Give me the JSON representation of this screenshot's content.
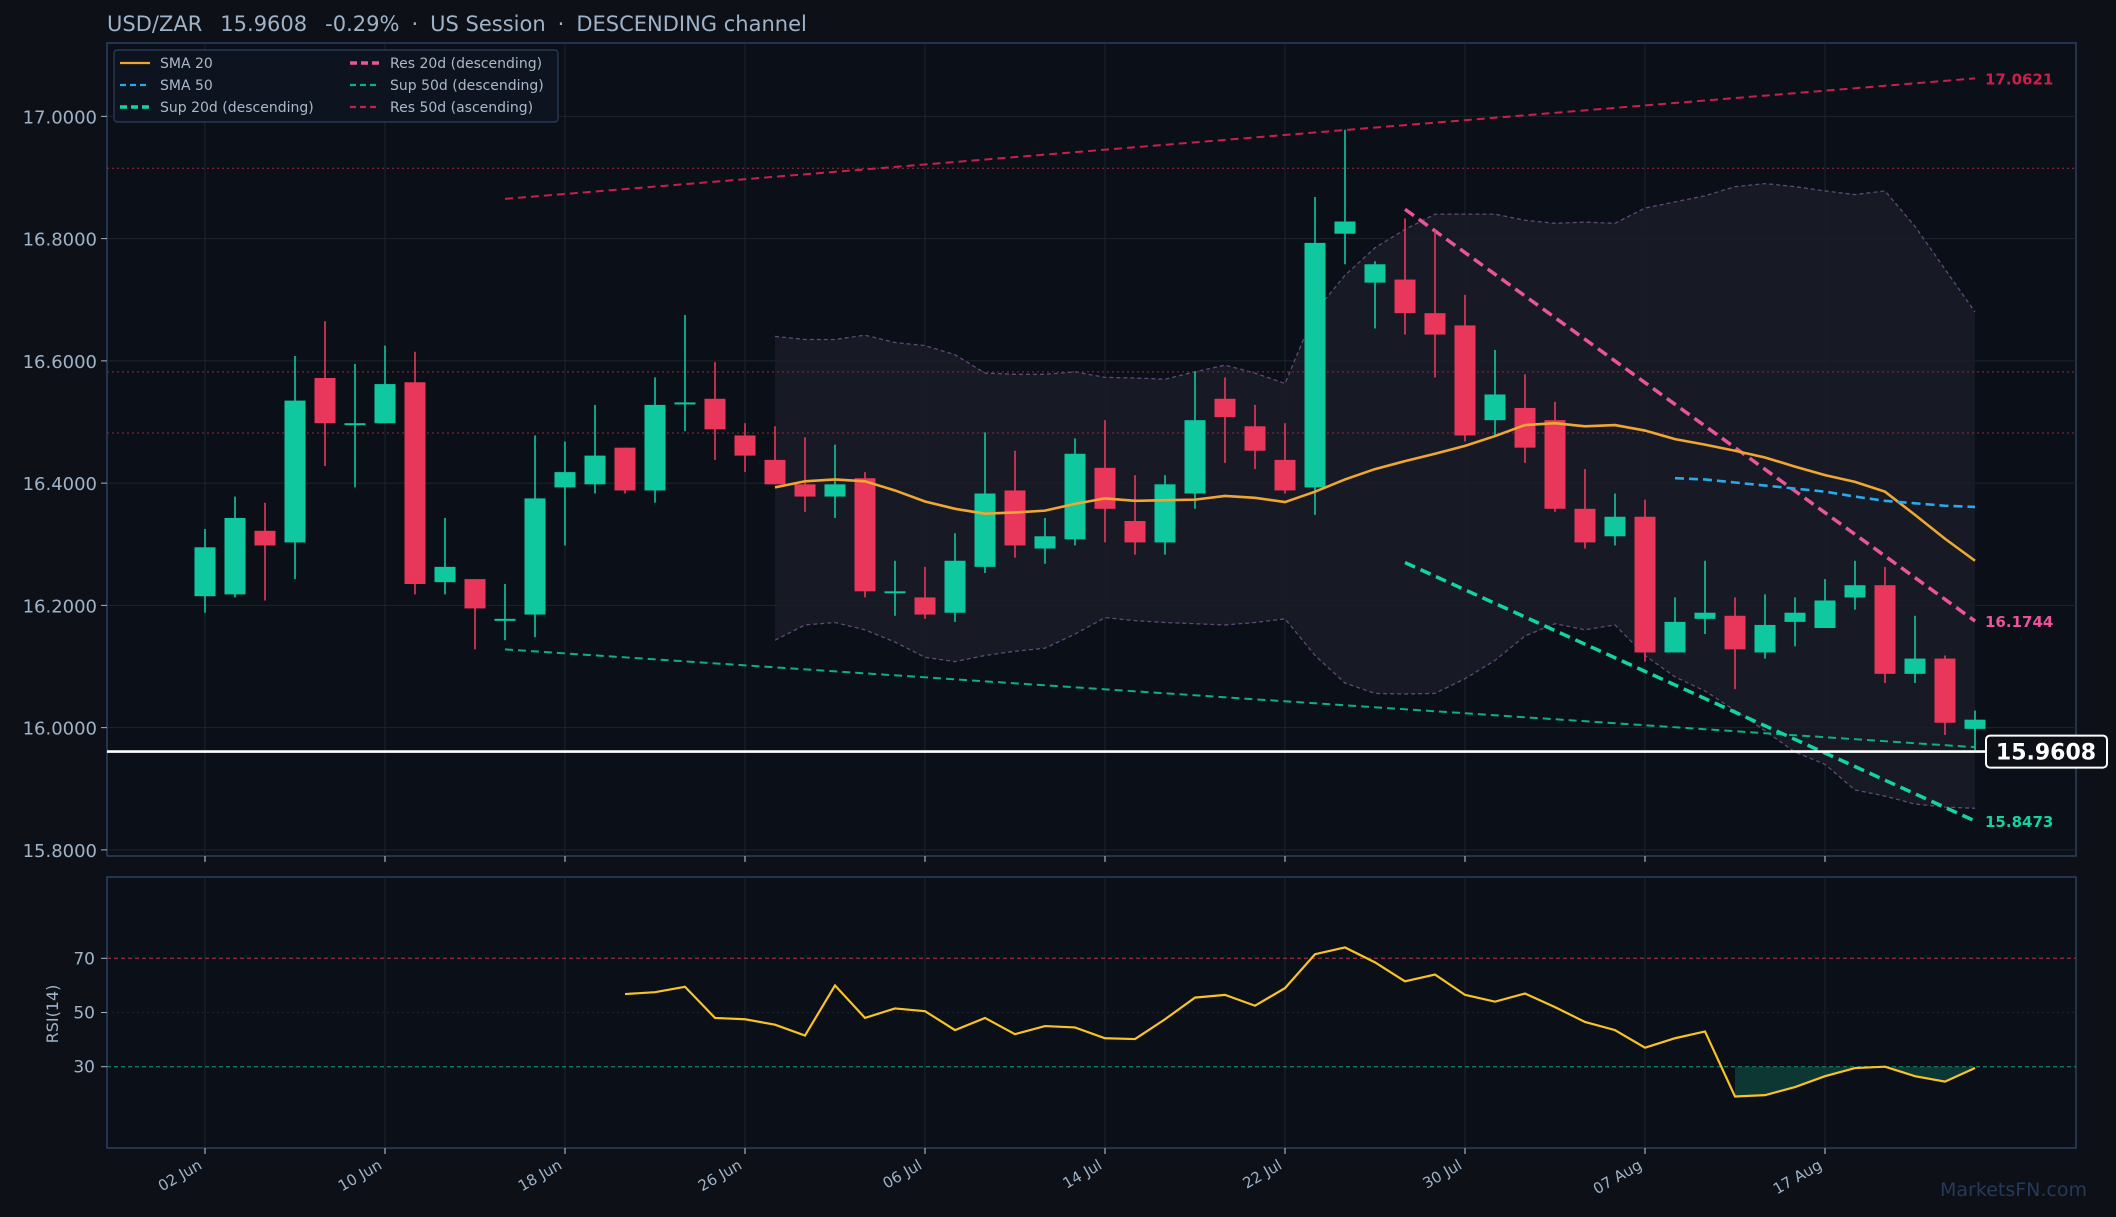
{
  "header": {
    "symbol": "USD/ZAR",
    "price": "15.9608",
    "change": "-0.29%",
    "session": "US Session",
    "pattern": "DESCENDING channel",
    "sep": "·"
  },
  "watermark": "MarketsFN.com",
  "colors": {
    "background": "#0d1117",
    "panel": "#0b0f17",
    "frame": "#2b4060",
    "grid": "#1d2430",
    "text": "#9fb3c8",
    "up": "#0fc8a0",
    "down": "#e8375a",
    "sma20": "#f0a732",
    "sma50": "#2ba9e8",
    "support": "#13d4a0",
    "resistance": "#e8559a",
    "res50": "#c8204a",
    "rsi": "#f7c325",
    "bollinger": "#5e4a78",
    "last_price": "#ffffff"
  },
  "legend": [
    {
      "label": "SMA 20",
      "style": "solid",
      "color": "#f0a732"
    },
    {
      "label": "SMA 50",
      "style": "dashed",
      "color": "#2ba9e8"
    },
    {
      "label": "Sup 20d (descending)",
      "style": "dashed-bold",
      "color": "#13d4a0"
    },
    {
      "label": "Res 20d (descending)",
      "style": "dashed-bold",
      "color": "#e8559a"
    },
    {
      "label": "Sup 50d (descending)",
      "style": "dashed",
      "color": "#0fb07e"
    },
    {
      "label": "Res 50d (ascending)",
      "style": "dashed",
      "color": "#c8204a"
    }
  ],
  "chart_data": {
    "type": "candlestick",
    "title": "USD/ZAR 15.9608 -0.29% · US Session · DESCENDING channel",
    "ylim": [
      15.79,
      17.12
    ],
    "yticks": [
      "15.8000",
      "16.0000",
      "16.2000",
      "16.4000",
      "16.6000",
      "16.8000",
      "17.0000"
    ],
    "x_tick_labels": [
      {
        "i": 0,
        "label": "02 Jun"
      },
      {
        "i": 6,
        "label": "10 Jun"
      },
      {
        "i": 12,
        "label": "18 Jun"
      },
      {
        "i": 18,
        "label": "26 Jun"
      },
      {
        "i": 24,
        "label": "06 Jul"
      },
      {
        "i": 30,
        "label": "14 Jul"
      },
      {
        "i": 36,
        "label": "22 Jul"
      },
      {
        "i": 42,
        "label": "30 Jul"
      },
      {
        "i": 48,
        "label": "07 Aug"
      },
      {
        "i": 54,
        "label": "17 Aug"
      }
    ],
    "candles": [
      {
        "o": 16.215,
        "h": 16.325,
        "l": 16.188,
        "c": 16.295
      },
      {
        "o": 16.218,
        "h": 16.378,
        "l": 16.213,
        "c": 16.343
      },
      {
        "o": 16.322,
        "h": 16.368,
        "l": 16.208,
        "c": 16.298
      },
      {
        "o": 16.303,
        "h": 16.608,
        "l": 16.243,
        "c": 16.535
      },
      {
        "o": 16.572,
        "h": 16.665,
        "l": 16.428,
        "c": 16.498
      },
      {
        "o": 16.496,
        "h": 16.595,
        "l": 16.393,
        "c": 16.498
      },
      {
        "o": 16.498,
        "h": 16.625,
        "l": 16.498,
        "c": 16.562
      },
      {
        "o": 16.565,
        "h": 16.615,
        "l": 16.218,
        "c": 16.235
      },
      {
        "o": 16.238,
        "h": 16.343,
        "l": 16.218,
        "c": 16.263
      },
      {
        "o": 16.243,
        "h": 16.243,
        "l": 16.128,
        "c": 16.195
      },
      {
        "o": 16.178,
        "h": 16.235,
        "l": 16.143,
        "c": 16.178
      },
      {
        "o": 16.185,
        "h": 16.478,
        "l": 16.148,
        "c": 16.375
      },
      {
        "o": 16.393,
        "h": 16.468,
        "l": 16.298,
        "c": 16.418
      },
      {
        "o": 16.398,
        "h": 16.528,
        "l": 16.383,
        "c": 16.445
      },
      {
        "o": 16.458,
        "h": 16.458,
        "l": 16.383,
        "c": 16.388
      },
      {
        "o": 16.388,
        "h": 16.573,
        "l": 16.368,
        "c": 16.528
      },
      {
        "o": 16.532,
        "h": 16.675,
        "l": 16.485,
        "c": 16.532
      },
      {
        "o": 16.538,
        "h": 16.598,
        "l": 16.438,
        "c": 16.488
      },
      {
        "o": 16.478,
        "h": 16.498,
        "l": 16.418,
        "c": 16.445
      },
      {
        "o": 16.438,
        "h": 16.493,
        "l": 16.398,
        "c": 16.398
      },
      {
        "o": 16.398,
        "h": 16.475,
        "l": 16.353,
        "c": 16.378
      },
      {
        "o": 16.378,
        "h": 16.463,
        "l": 16.343,
        "c": 16.398
      },
      {
        "o": 16.408,
        "h": 16.418,
        "l": 16.213,
        "c": 16.223
      },
      {
        "o": 16.223,
        "h": 16.273,
        "l": 16.183,
        "c": 16.223
      },
      {
        "o": 16.213,
        "h": 16.263,
        "l": 16.178,
        "c": 16.185
      },
      {
        "o": 16.188,
        "h": 16.318,
        "l": 16.173,
        "c": 16.273
      },
      {
        "o": 16.263,
        "h": 16.483,
        "l": 16.253,
        "c": 16.383
      },
      {
        "o": 16.388,
        "h": 16.453,
        "l": 16.278,
        "c": 16.298
      },
      {
        "o": 16.293,
        "h": 16.343,
        "l": 16.268,
        "c": 16.313
      },
      {
        "o": 16.308,
        "h": 16.473,
        "l": 16.298,
        "c": 16.448
      },
      {
        "o": 16.425,
        "h": 16.503,
        "l": 16.303,
        "c": 16.358
      },
      {
        "o": 16.338,
        "h": 16.413,
        "l": 16.283,
        "c": 16.303
      },
      {
        "o": 16.303,
        "h": 16.413,
        "l": 16.283,
        "c": 16.398
      },
      {
        "o": 16.383,
        "h": 16.583,
        "l": 16.358,
        "c": 16.503
      },
      {
        "o": 16.538,
        "h": 16.573,
        "l": 16.433,
        "c": 16.508
      },
      {
        "o": 16.493,
        "h": 16.528,
        "l": 16.423,
        "c": 16.453
      },
      {
        "o": 16.438,
        "h": 16.498,
        "l": 16.383,
        "c": 16.388
      },
      {
        "o": 16.393,
        "h": 16.868,
        "l": 16.348,
        "c": 16.793
      },
      {
        "o": 16.808,
        "h": 16.978,
        "l": 16.758,
        "c": 16.828
      },
      {
        "o": 16.728,
        "h": 16.763,
        "l": 16.653,
        "c": 16.758
      },
      {
        "o": 16.733,
        "h": 16.833,
        "l": 16.643,
        "c": 16.678
      },
      {
        "o": 16.678,
        "h": 16.813,
        "l": 16.573,
        "c": 16.643
      },
      {
        "o": 16.658,
        "h": 16.708,
        "l": 16.468,
        "c": 16.478
      },
      {
        "o": 16.503,
        "h": 16.618,
        "l": 16.478,
        "c": 16.545
      },
      {
        "o": 16.523,
        "h": 16.578,
        "l": 16.433,
        "c": 16.458
      },
      {
        "o": 16.503,
        "h": 16.533,
        "l": 16.353,
        "c": 16.358
      },
      {
        "o": 16.358,
        "h": 16.423,
        "l": 16.293,
        "c": 16.303
      },
      {
        "o": 16.313,
        "h": 16.383,
        "l": 16.298,
        "c": 16.345
      },
      {
        "o": 16.345,
        "h": 16.373,
        "l": 16.108,
        "c": 16.123
      },
      {
        "o": 16.123,
        "h": 16.213,
        "l": 16.123,
        "c": 16.173
      },
      {
        "o": 16.178,
        "h": 16.273,
        "l": 16.153,
        "c": 16.188
      },
      {
        "o": 16.183,
        "h": 16.213,
        "l": 16.063,
        "c": 16.128
      },
      {
        "o": 16.123,
        "h": 16.218,
        "l": 16.113,
        "c": 16.168
      },
      {
        "o": 16.173,
        "h": 16.213,
        "l": 16.133,
        "c": 16.188
      },
      {
        "o": 16.163,
        "h": 16.243,
        "l": 16.163,
        "c": 16.208
      },
      {
        "o": 16.213,
        "h": 16.273,
        "l": 16.193,
        "c": 16.233
      },
      {
        "o": 16.233,
        "h": 16.263,
        "l": 16.073,
        "c": 16.088
      },
      {
        "o": 16.088,
        "h": 16.183,
        "l": 16.073,
        "c": 16.113
      },
      {
        "o": 16.113,
        "h": 16.118,
        "l": 15.988,
        "c": 16.008
      },
      {
        "o": 15.998,
        "h": 16.028,
        "l": 15.963,
        "c": 16.013
      }
    ],
    "sma20": {
      "start": 19,
      "values": [
        16.393,
        16.403,
        16.406,
        16.403,
        16.388,
        16.37,
        16.358,
        16.35,
        16.352,
        16.355,
        16.366,
        16.375,
        16.371,
        16.372,
        16.373,
        16.379,
        16.376,
        16.369,
        16.386,
        16.406,
        16.423,
        16.436,
        16.448,
        16.461,
        16.477,
        16.495,
        16.498,
        16.493,
        16.495,
        16.486,
        16.472,
        16.463,
        16.453,
        16.442,
        16.427,
        16.413,
        16.402,
        16.386,
        16.348,
        16.309,
        16.273
      ]
    },
    "sma50": {
      "start": 49,
      "values": [
        16.408,
        16.406,
        16.401,
        16.396,
        16.391,
        16.386,
        16.378,
        16.371,
        16.367,
        16.363,
        16.361
      ]
    },
    "bollinger": {
      "start": 19,
      "upper": [
        16.64,
        16.635,
        16.635,
        16.642,
        16.63,
        16.625,
        16.61,
        16.58,
        16.578,
        16.578,
        16.582,
        16.573,
        16.572,
        16.57,
        16.582,
        16.593,
        16.58,
        16.563,
        16.68,
        16.74,
        16.785,
        16.815,
        16.84,
        16.84,
        16.84,
        16.83,
        16.825,
        16.827,
        16.825,
        16.85,
        16.86,
        16.87,
        16.885,
        16.89,
        16.885,
        16.878,
        16.872,
        16.878,
        16.82,
        16.75,
        16.68
      ],
      "lower": [
        16.143,
        16.168,
        16.172,
        16.16,
        16.14,
        16.115,
        16.108,
        16.118,
        16.125,
        16.13,
        16.153,
        16.18,
        16.175,
        16.172,
        16.17,
        16.168,
        16.172,
        16.178,
        16.118,
        16.073,
        16.056,
        16.055,
        16.056,
        16.08,
        16.11,
        16.15,
        16.17,
        16.16,
        16.168,
        16.118,
        16.083,
        16.06,
        16.028,
        15.995,
        15.96,
        15.94,
        15.898,
        15.888,
        15.875,
        15.87,
        15.868
      ]
    },
    "trendlines": [
      {
        "name": "Res 50d (ascending)",
        "from": [
          10,
          16.865
        ],
        "to": [
          59,
          17.0621
        ],
        "color": "#c8204a",
        "width": 2,
        "dash": "8,5",
        "label": "17.0621"
      },
      {
        "name": "Sup 50d (descending)",
        "from": [
          10,
          16.128
        ],
        "to": [
          59,
          15.968
        ],
        "color": "#0fb07e",
        "width": 2,
        "dash": "8,5",
        "label": ""
      },
      {
        "name": "Res 20d (descending)",
        "from": [
          40,
          16.848
        ],
        "to": [
          59,
          16.1744
        ],
        "color": "#e8559a",
        "width": 3.5,
        "dash": "11,6",
        "label": "16.1744"
      },
      {
        "name": "Sup 20d (descending)",
        "from": [
          40,
          16.27
        ],
        "to": [
          59,
          15.8473
        ],
        "color": "#13d4a0",
        "width": 3.5,
        "dash": "11,6",
        "label": "15.8473"
      }
    ],
    "hlines": [
      16.915,
      16.582,
      16.482
    ],
    "last_price": {
      "value": 15.9608,
      "label": "15.9608"
    },
    "rsi": {
      "label": "RSI(14)",
      "ylim": [
        0,
        100
      ],
      "yticks": [
        "30",
        "50",
        "70"
      ],
      "overbought": 70,
      "oversold": 30,
      "start": 14,
      "values": [
        56.8,
        57.5,
        59.5,
        48.0,
        47.5,
        45.5,
        41.5,
        60.0,
        48.0,
        51.5,
        50.5,
        43.5,
        48.0,
        42.0,
        45.0,
        44.5,
        40.5,
        40.2,
        47.5,
        55.5,
        56.5,
        52.5,
        59.0,
        71.5,
        74.0,
        68.5,
        61.5,
        64.0,
        56.5,
        54.0,
        57.0,
        52.0,
        46.5,
        43.5,
        37.0,
        40.5,
        43.0,
        19.0,
        19.5,
        22.5,
        26.5,
        29.5,
        30.0,
        26.5,
        24.5,
        29.5
      ]
    }
  }
}
